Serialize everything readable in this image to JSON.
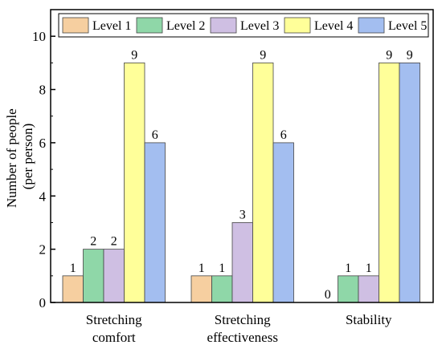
{
  "chart_data": {
    "type": "bar",
    "ylabel_lines": [
      "Number of people",
      "(per person)"
    ],
    "xlabel": "",
    "ylim": [
      0,
      11
    ],
    "yticks": [
      "0",
      "2",
      "4",
      "6",
      "8",
      "10"
    ],
    "categories": [
      [
        "Stretching",
        "comfort"
      ],
      [
        "Stretching",
        "effectiveness"
      ],
      [
        "Stability"
      ]
    ],
    "series": [
      {
        "name": "Level 1",
        "color": "#f6cfa0",
        "values": [
          1,
          1,
          0
        ]
      },
      {
        "name": "Level 2",
        "color": "#8fd7a8",
        "values": [
          2,
          1,
          1
        ]
      },
      {
        "name": "Level 3",
        "color": "#cfbfe3",
        "values": [
          2,
          3,
          1
        ]
      },
      {
        "name": "Level 4",
        "color": "#ffff99",
        "values": [
          9,
          9,
          9
        ]
      },
      {
        "name": "Level 5",
        "color": "#a3bef0",
        "values": [
          6,
          6,
          9
        ]
      }
    ],
    "data_labels": [
      [
        "1",
        "2",
        "2",
        "9",
        "6"
      ],
      [
        "1",
        "1",
        "3",
        "9",
        "6"
      ],
      [
        "0",
        "1",
        "1",
        "9",
        "9"
      ]
    ],
    "legend_position": "top",
    "grid": false
  }
}
